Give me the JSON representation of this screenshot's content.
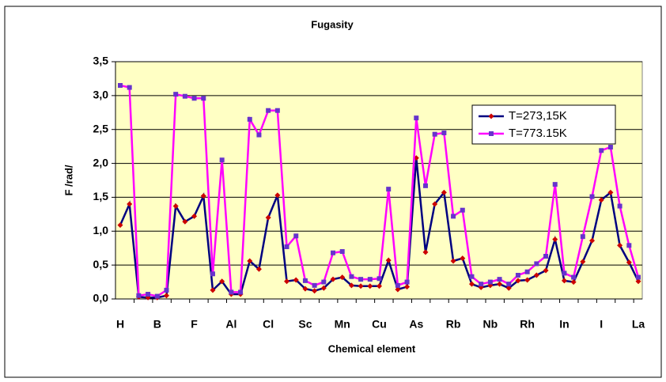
{
  "chart_data": {
    "type": "line",
    "title": "Fugasity",
    "xlabel": "Chemical element",
    "ylabel": "F /rad/",
    "categories": [
      "H",
      null,
      null,
      null,
      "B",
      null,
      null,
      null,
      "F",
      null,
      null,
      null,
      "Al",
      null,
      null,
      null,
      "Cl",
      null,
      null,
      null,
      "Sc",
      null,
      null,
      null,
      "Mn",
      null,
      null,
      null,
      "Cu",
      null,
      null,
      null,
      "As",
      null,
      null,
      null,
      "Rb",
      null,
      null,
      null,
      "Nb",
      null,
      null,
      null,
      "Rh",
      null,
      null,
      null,
      "In",
      null,
      null,
      null,
      "I",
      null,
      null,
      null,
      "La"
    ],
    "series": [
      {
        "name": "T=273,15K",
        "color": "#000080",
        "marker": "diamond",
        "marker_color": "#cc0000",
        "values": [
          1.09,
          1.4,
          0.03,
          0.02,
          0.02,
          0.05,
          1.37,
          1.14,
          1.22,
          1.52,
          0.13,
          0.26,
          0.07,
          0.07,
          0.56,
          0.44,
          1.2,
          1.53,
          0.26,
          0.28,
          0.15,
          0.12,
          0.16,
          0.29,
          0.32,
          0.2,
          0.19,
          0.19,
          0.19,
          0.57,
          0.14,
          0.18,
          2.08,
          0.69,
          1.4,
          1.57,
          0.56,
          0.6,
          0.22,
          0.17,
          0.2,
          0.22,
          0.16,
          0.27,
          0.28,
          0.35,
          0.42,
          0.88,
          0.27,
          0.25,
          0.55,
          0.86,
          1.46,
          1.57,
          0.79,
          0.54,
          0.26
        ]
      },
      {
        "name": "T=773.15K",
        "color": "#ff00ff",
        "marker": "square",
        "marker_color": "#6633cc",
        "values": [
          3.15,
          3.12,
          0.05,
          0.07,
          0.04,
          0.13,
          3.02,
          2.99,
          2.96,
          2.96,
          0.37,
          2.05,
          0.1,
          0.1,
          2.65,
          2.42,
          2.78,
          2.78,
          0.77,
          0.93,
          0.27,
          0.2,
          0.25,
          0.68,
          0.7,
          0.33,
          0.29,
          0.29,
          0.3,
          1.62,
          0.2,
          0.25,
          2.67,
          1.67,
          2.43,
          2.45,
          1.22,
          1.31,
          0.33,
          0.22,
          0.25,
          0.29,
          0.22,
          0.35,
          0.4,
          0.52,
          0.63,
          1.69,
          0.38,
          0.32,
          0.92,
          1.51,
          2.19,
          2.24,
          1.37,
          0.79,
          0.32
        ]
      }
    ],
    "ylim": [
      0,
      3.5
    ],
    "yticks": [
      {
        "value": 0,
        "label": "0,0"
      },
      {
        "value": 0.5,
        "label": "0,5"
      },
      {
        "value": 1,
        "label": "1,0"
      },
      {
        "value": 1.5,
        "label": "1,5"
      },
      {
        "value": 2,
        "label": "2,0"
      },
      {
        "value": 2.5,
        "label": "2,5"
      },
      {
        "value": 3,
        "label": "3,0"
      },
      {
        "value": 3.5,
        "label": "3,5"
      }
    ],
    "grid": true,
    "legend": "upper right",
    "plot_background": "#ffffc4"
  }
}
